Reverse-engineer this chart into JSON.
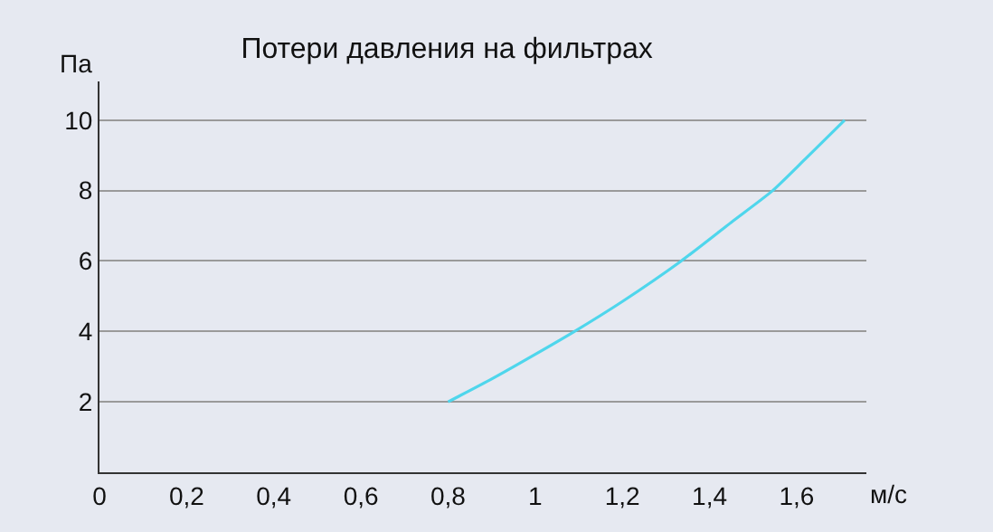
{
  "chart_data": {
    "type": "line",
    "title": "Потери давления на фильтрах",
    "xlabel": "м/с",
    "ylabel": "Па",
    "x": [
      0.8,
      0.9,
      1.0,
      1.09,
      1.2,
      1.335,
      1.45,
      1.545,
      1.62,
      1.71
    ],
    "series": [
      {
        "color": "#4fd6ec",
        "values": [
          2,
          2.65,
          3.35,
          4,
          4.85,
          6,
          7.1,
          8,
          8.9,
          10
        ]
      }
    ],
    "xlim": [
      0,
      1.76
    ],
    "ylim": [
      0,
      11.1
    ],
    "xticks": [
      0,
      {
        "value": 0.2,
        "label": "0,2"
      },
      {
        "value": 0.4,
        "label": "0,4"
      },
      {
        "value": 0.6,
        "label": "0,6"
      },
      {
        "value": 0.8,
        "label": "0,8"
      },
      1,
      {
        "value": 1.2,
        "label": "1,2"
      },
      {
        "value": 1.4,
        "label": "1,4"
      },
      {
        "value": 1.6,
        "label": "1,6"
      }
    ],
    "yticks": [
      2,
      4,
      6,
      8,
      10
    ],
    "grid": "y",
    "marker": "none",
    "line_style": "solid"
  }
}
